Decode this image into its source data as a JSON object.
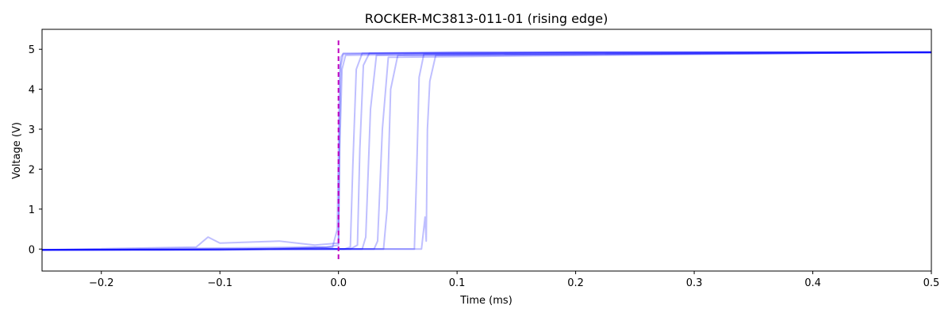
{
  "chart_data": {
    "type": "line",
    "title": "ROCKER-MC3813-011-01 (rising edge)",
    "xlabel": "Time (ms)",
    "ylabel": "Voltage (V)",
    "xlim": [
      -0.25,
      0.5
    ],
    "ylim": [
      -0.55,
      5.5
    ],
    "x_ticks": [
      {
        "value": -0.2,
        "label": "−0.2"
      },
      {
        "value": -0.1,
        "label": "−0.1"
      },
      {
        "value": 0.0,
        "label": "0.0"
      },
      {
        "value": 0.1,
        "label": "0.1"
      },
      {
        "value": 0.2,
        "label": "0.2"
      },
      {
        "value": 0.3,
        "label": "0.3"
      },
      {
        "value": 0.4,
        "label": "0.4"
      },
      {
        "value": 0.5,
        "label": "0.5"
      }
    ],
    "y_ticks": [
      {
        "value": 0,
        "label": "0"
      },
      {
        "value": 1,
        "label": "1"
      },
      {
        "value": 2,
        "label": "2"
      },
      {
        "value": 3,
        "label": "3"
      },
      {
        "value": 4,
        "label": "4"
      },
      {
        "value": 5,
        "label": "5"
      }
    ],
    "grid": false,
    "trace_color": "#0000ff",
    "marker_color": "#bf00bf",
    "trigger_marker": {
      "x": 0.0,
      "style": "dashed"
    },
    "series": [
      {
        "x": [
          -0.25,
          -0.15,
          -0.08,
          -0.03,
          -0.005,
          -0.001,
          0.0,
          0.001,
          0.002,
          0.004,
          0.1,
          0.3,
          0.5
        ],
        "y": [
          -0.02,
          -0.02,
          0.0,
          0.03,
          0.05,
          0.5,
          2.5,
          4.4,
          4.8,
          4.9,
          4.93,
          4.93,
          4.93
        ]
      },
      {
        "x": [
          -0.25,
          -0.1,
          -0.05,
          -0.01,
          0.0,
          0.001,
          0.002,
          0.004,
          0.1,
          0.5
        ],
        "y": [
          -0.03,
          -0.03,
          0.0,
          0.05,
          0.1,
          3.0,
          4.6,
          4.88,
          4.92,
          4.92
        ]
      },
      {
        "x": [
          -0.25,
          -0.12,
          -0.11,
          -0.1,
          -0.05,
          -0.02,
          0.0,
          0.001,
          0.003,
          0.006,
          0.2,
          0.5
        ],
        "y": [
          -0.02,
          0.05,
          0.3,
          0.15,
          0.2,
          0.1,
          0.15,
          2.5,
          4.5,
          4.85,
          4.93,
          4.93
        ]
      },
      {
        "x": [
          -0.25,
          -0.05,
          0.0,
          0.005,
          0.01,
          0.012,
          0.015,
          0.02,
          0.5
        ],
        "y": [
          -0.02,
          0.0,
          0.0,
          0.0,
          0.05,
          2.0,
          4.5,
          4.9,
          4.92
        ]
      },
      {
        "x": [
          -0.25,
          -0.03,
          0.0,
          0.01,
          0.016,
          0.018,
          0.021,
          0.026,
          0.5
        ],
        "y": [
          -0.02,
          0.0,
          0.0,
          0.0,
          0.1,
          2.5,
          4.6,
          4.9,
          4.93
        ]
      },
      {
        "x": [
          -0.25,
          -0.02,
          0.0,
          0.02,
          0.023,
          0.027,
          0.032,
          0.5
        ],
        "y": [
          -0.02,
          0.05,
          0.0,
          0.0,
          0.3,
          3.5,
          4.85,
          4.92
        ]
      },
      {
        "x": [
          -0.25,
          0.0,
          0.03,
          0.033,
          0.037,
          0.042,
          0.5
        ],
        "y": [
          -0.02,
          0.0,
          0.0,
          0.2,
          3.0,
          4.8,
          4.93
        ]
      },
      {
        "x": [
          -0.25,
          0.0,
          0.038,
          0.041,
          0.044,
          0.05,
          0.5
        ],
        "y": [
          -0.02,
          0.0,
          0.0,
          1.0,
          4.0,
          4.85,
          4.92
        ]
      },
      {
        "x": [
          -0.25,
          0.0,
          0.064,
          0.066,
          0.068,
          0.072,
          0.5
        ],
        "y": [
          -0.02,
          0.0,
          0.0,
          2.0,
          4.3,
          4.88,
          4.93
        ]
      },
      {
        "x": [
          -0.25,
          0.0,
          0.067,
          0.07,
          0.073,
          0.074,
          0.075,
          0.077,
          0.082,
          0.5
        ],
        "y": [
          -0.02,
          0.0,
          0.0,
          0.0,
          0.8,
          0.2,
          3.0,
          4.2,
          4.85,
          4.92
        ]
      }
    ]
  }
}
